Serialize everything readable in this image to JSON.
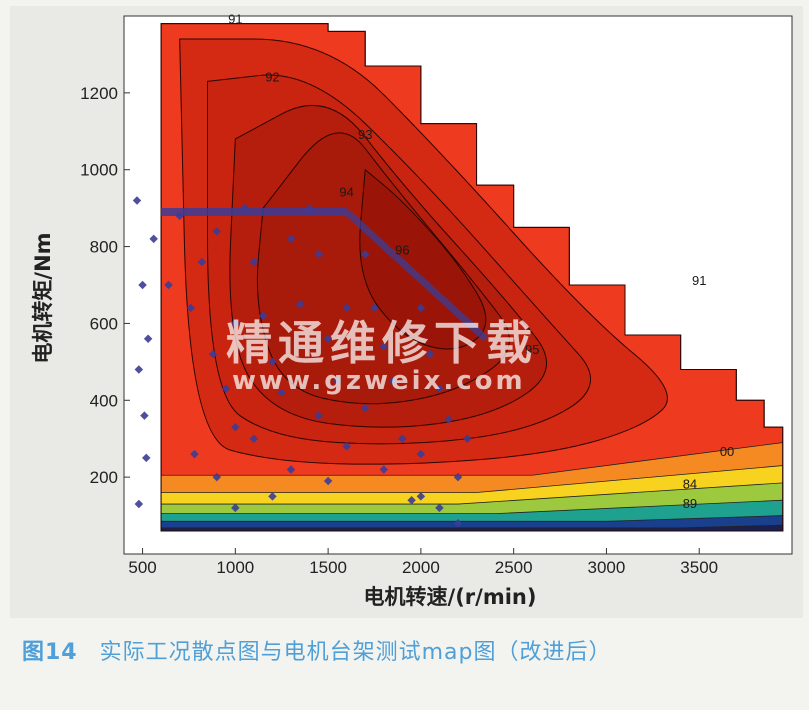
{
  "chart_data": {
    "type": "heatmap",
    "xlabel": "电机转速/(r/min)",
    "ylabel": "电机转矩/Nm",
    "xlim": [
      400,
      4000
    ],
    "ylim": [
      0,
      1400
    ],
    "xticks": [
      500,
      1000,
      1500,
      2000,
      2500,
      3000,
      3500
    ],
    "yticks": [
      200,
      400,
      600,
      800,
      1000,
      1200
    ],
    "envelope": [
      [
        600,
        1380
      ],
      [
        1500,
        1360
      ],
      [
        1700,
        1270
      ],
      [
        2000,
        1120
      ],
      [
        2300,
        960
      ],
      [
        2500,
        850
      ],
      [
        2800,
        700
      ],
      [
        3100,
        570
      ],
      [
        3400,
        480
      ],
      [
        3700,
        400
      ],
      [
        3850,
        330
      ],
      [
        3950,
        290
      ]
    ],
    "contour_levels": [
      80,
      84,
      88,
      91,
      92,
      93,
      94,
      95,
      96
    ],
    "contour_labels": [
      "91",
      "92",
      "93",
      "94",
      "95",
      "96",
      "91",
      "00",
      "84",
      "89"
    ],
    "scatter_points": [
      [
        470,
        920
      ],
      [
        500,
        700
      ],
      [
        480,
        480
      ],
      [
        520,
        250
      ],
      [
        480,
        130
      ],
      [
        560,
        820
      ],
      [
        530,
        560
      ],
      [
        510,
        360
      ],
      [
        700,
        880
      ],
      [
        820,
        760
      ],
      [
        760,
        640
      ],
      [
        880,
        520
      ],
      [
        950,
        430
      ],
      [
        1000,
        330
      ],
      [
        780,
        260
      ],
      [
        900,
        200
      ],
      [
        1050,
        900
      ],
      [
        1100,
        760
      ],
      [
        1150,
        620
      ],
      [
        1200,
        500
      ],
      [
        1250,
        420
      ],
      [
        1100,
        300
      ],
      [
        1300,
        220
      ],
      [
        1200,
        150
      ],
      [
        1400,
        900
      ],
      [
        1450,
        780
      ],
      [
        1350,
        650
      ],
      [
        1500,
        560
      ],
      [
        1550,
        450
      ],
      [
        1450,
        360
      ],
      [
        1600,
        280
      ],
      [
        1500,
        190
      ],
      [
        1700,
        780
      ],
      [
        1750,
        640
      ],
      [
        1800,
        540
      ],
      [
        1850,
        450
      ],
      [
        1700,
        380
      ],
      [
        1900,
        300
      ],
      [
        1800,
        220
      ],
      [
        1950,
        140
      ],
      [
        2000,
        640
      ],
      [
        2050,
        520
      ],
      [
        2100,
        430
      ],
      [
        2150,
        350
      ],
      [
        2000,
        260
      ],
      [
        2200,
        200
      ],
      [
        2100,
        120
      ],
      [
        2250,
        300
      ],
      [
        640,
        700
      ],
      [
        900,
        840
      ],
      [
        1000,
        600
      ],
      [
        1300,
        820
      ],
      [
        1600,
        640
      ],
      [
        2000,
        150
      ],
      [
        2200,
        80
      ],
      [
        1000,
        120
      ]
    ],
    "scatter_band": {
      "x": [
        600,
        1600
      ],
      "y": 890
    }
  },
  "caption": {
    "figure_no": "图14",
    "text": "实际工况散点图与电机台架测试map图（改进后）"
  },
  "watermark": {
    "cn": "精通维修下载",
    "url": "www.gzweix.com"
  },
  "colors": {
    "outer_red": "#ee3a1f",
    "mid_red": "#d42a14",
    "inner_red": "#b51d0c",
    "core_red": "#9a1508",
    "orange": "#f68a22",
    "yellow": "#f7d31f",
    "green": "#9cc93d",
    "teal": "#1ea18f",
    "blue": "#1a3f8d",
    "navy": "#182052",
    "scatter": "#3c3c96"
  }
}
